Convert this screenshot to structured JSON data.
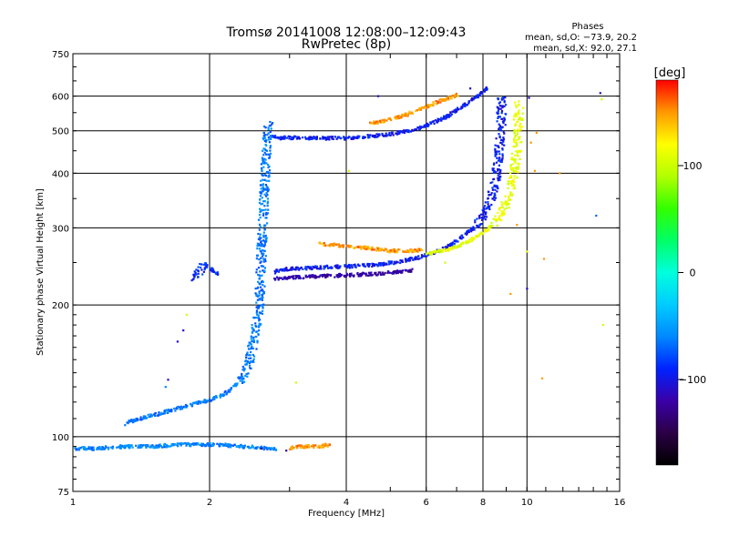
{
  "chart_data": {
    "type": "scatter",
    "title": "Tromsø 20141008 12:08:00–12:09:43",
    "subtitle": "RwPretec (8p)",
    "phases": {
      "title": "Phases",
      "line_o": "mean, sd,O: −73.9, 20.2",
      "line_x": "mean, sd,X:  92.0, 27.1"
    },
    "xlabel": "Frequency [MHz]",
    "ylabel": "Stationary phase Virtual Height [km]",
    "x_scale": "log",
    "y_scale": "log",
    "xlim": [
      1,
      16
    ],
    "ylim": [
      75,
      750
    ],
    "grid": true,
    "x_ticks": [
      1,
      2,
      4,
      6,
      8,
      10,
      16
    ],
    "x_tick_labels": [
      "1",
      "2",
      "4",
      "6",
      "8",
      "10",
      "16"
    ],
    "y_ticks": [
      75,
      100,
      200,
      300,
      400,
      500,
      600,
      750
    ],
    "y_tick_labels": [
      "75",
      "100",
      "200",
      "300",
      "400",
      "500",
      "600",
      "750"
    ],
    "colorbar": {
      "label": "[deg]",
      "range": [
        -180,
        180
      ],
      "ticks": [
        100,
        0,
        -100
      ],
      "tick_labels": [
        "100",
        "0",
        "−100"
      ],
      "colors": [
        "#000000",
        "#2b0045",
        "#3a00a8",
        "#0022ff",
        "#0088ff",
        "#00ccff",
        "#00ffdd",
        "#00ff66",
        "#33ff00",
        "#b2ff00",
        "#ffff00",
        "#ff9900",
        "#ff0000"
      ]
    },
    "series": [
      {
        "phase": -95,
        "color": "#1133ee",
        "x": [
          2.75,
          2.8,
          3.0,
          3.2,
          3.4,
          3.6,
          3.8,
          4.0,
          4.3,
          4.6,
          5.0,
          5.4,
          5.8,
          6.2,
          6.6,
          7.0,
          7.4,
          7.8,
          8.2
        ],
        "y": [
          490,
          482,
          482,
          482,
          481,
          481,
          481,
          481,
          484,
          487,
          491,
          498,
          508,
          521,
          537,
          556,
          578,
          602,
          629
        ]
      },
      {
        "phase": -95,
        "color": "#1133ee",
        "x": [
          2.78,
          2.85,
          3.0,
          3.3,
          3.6,
          4.0,
          4.4,
          4.8,
          5.2,
          5.6,
          6.0,
          6.4,
          6.8,
          7.2,
          7.6,
          8.0,
          8.3,
          8.5,
          8.65,
          8.75,
          8.8
        ],
        "y": [
          238,
          240,
          242,
          243,
          244,
          245,
          246,
          248,
          251,
          255,
          260,
          267,
          275,
          287,
          300,
          320,
          345,
          380,
          430,
          500,
          600
        ]
      },
      {
        "phase": -120,
        "color": "#0a1acc",
        "x": [
          2.78,
          3.0,
          3.3,
          3.6,
          4.0,
          4.4,
          4.8,
          5.2,
          5.6
        ],
        "y": [
          230,
          231,
          232,
          233,
          234,
          235,
          236,
          238,
          240
        ]
      },
      {
        "phase": 110,
        "color": "#c8f000",
        "x": [
          6.0,
          6.5,
          7.0,
          7.5,
          8.0,
          8.4,
          8.8,
          9.1,
          9.3,
          9.45,
          9.55,
          9.6
        ],
        "y": [
          261,
          266,
          272,
          281,
          292,
          305,
          325,
          350,
          385,
          430,
          500,
          580
        ]
      },
      {
        "phase": 150,
        "color": "#ff7700",
        "x": [
          3.5,
          3.8,
          4.1,
          4.4,
          4.7,
          5.0,
          5.3,
          5.6,
          5.9
        ],
        "y": [
          276,
          274,
          272,
          270,
          268,
          266,
          266,
          266,
          267
        ]
      },
      {
        "phase": 150,
        "color": "#ff6600",
        "x": [
          4.5,
          4.9,
          5.3,
          5.7,
          6.1,
          6.6,
          7.1
        ],
        "y": [
          520,
          528,
          540,
          555,
          572,
          590,
          605
        ]
      },
      {
        "phase": -65,
        "color": "#2299ee",
        "x": [
          1.3,
          1.4,
          1.5,
          1.6,
          1.7,
          1.8,
          1.9,
          2.0,
          2.1,
          2.2,
          2.3,
          2.4,
          2.45,
          2.5,
          2.55,
          2.58,
          2.6,
          2.63,
          2.66,
          2.7
        ],
        "y": [
          107,
          110,
          112,
          114,
          116,
          118,
          120,
          121,
          124,
          127,
          132,
          140,
          150,
          165,
          185,
          210,
          260,
          330,
          420,
          520
        ]
      },
      {
        "phase": -60,
        "color": "#2aa5ee",
        "x": [
          1.0,
          1.1,
          1.3,
          1.5,
          1.7,
          1.9,
          2.1,
          2.3,
          2.5,
          2.65,
          2.8
        ],
        "y": [
          94,
          94,
          95,
          95,
          96,
          96,
          96,
          95,
          95,
          94,
          94
        ]
      },
      {
        "phase": 150,
        "color": "#ff8800",
        "x": [
          3.0,
          3.1,
          3.2,
          3.5,
          3.7
        ],
        "y": [
          94,
          95,
          95,
          95,
          96
        ]
      },
      {
        "phase": -90,
        "color": "#1144ee",
        "x": [
          1.85,
          1.9,
          1.95,
          2.0,
          2.05,
          2.1
        ],
        "y": [
          230,
          240,
          248,
          243,
          238,
          235
        ]
      }
    ],
    "scatter_points": [
      {
        "x": 4.7,
        "y": 600,
        "phase": -110
      },
      {
        "x": 7.5,
        "y": 625,
        "phase": -110
      },
      {
        "x": 10.1,
        "y": 595,
        "phase": -110
      },
      {
        "x": 14.5,
        "y": 610,
        "phase": -110
      },
      {
        "x": 4.05,
        "y": 405,
        "phase": 100
      },
      {
        "x": 10.2,
        "y": 470,
        "phase": 150
      },
      {
        "x": 10.4,
        "y": 405,
        "phase": 150
      },
      {
        "x": 11.8,
        "y": 400,
        "phase": 150
      },
      {
        "x": 10.5,
        "y": 495,
        "phase": 150
      },
      {
        "x": 14.6,
        "y": 590,
        "phase": 100
      },
      {
        "x": 14.2,
        "y": 320,
        "phase": -70
      },
      {
        "x": 9.5,
        "y": 305,
        "phase": 150
      },
      {
        "x": 10.0,
        "y": 265,
        "phase": 110
      },
      {
        "x": 10.9,
        "y": 255,
        "phase": 150
      },
      {
        "x": 10.0,
        "y": 218,
        "phase": -110
      },
      {
        "x": 9.2,
        "y": 212,
        "phase": 150
      },
      {
        "x": 14.7,
        "y": 180,
        "phase": 100
      },
      {
        "x": 10.8,
        "y": 136,
        "phase": 150
      },
      {
        "x": 6.6,
        "y": 250,
        "phase": 100
      },
      {
        "x": 3.1,
        "y": 133,
        "phase": 100
      },
      {
        "x": 1.78,
        "y": 190,
        "phase": 100
      },
      {
        "x": 1.75,
        "y": 175,
        "phase": -110
      },
      {
        "x": 1.7,
        "y": 165,
        "phase": -110
      },
      {
        "x": 1.62,
        "y": 135,
        "phase": -110
      },
      {
        "x": 1.6,
        "y": 130,
        "phase": -60
      },
      {
        "x": 2.95,
        "y": 93,
        "phase": -130
      },
      {
        "x": 2.6,
        "y": 94,
        "phase": -130
      }
    ]
  }
}
